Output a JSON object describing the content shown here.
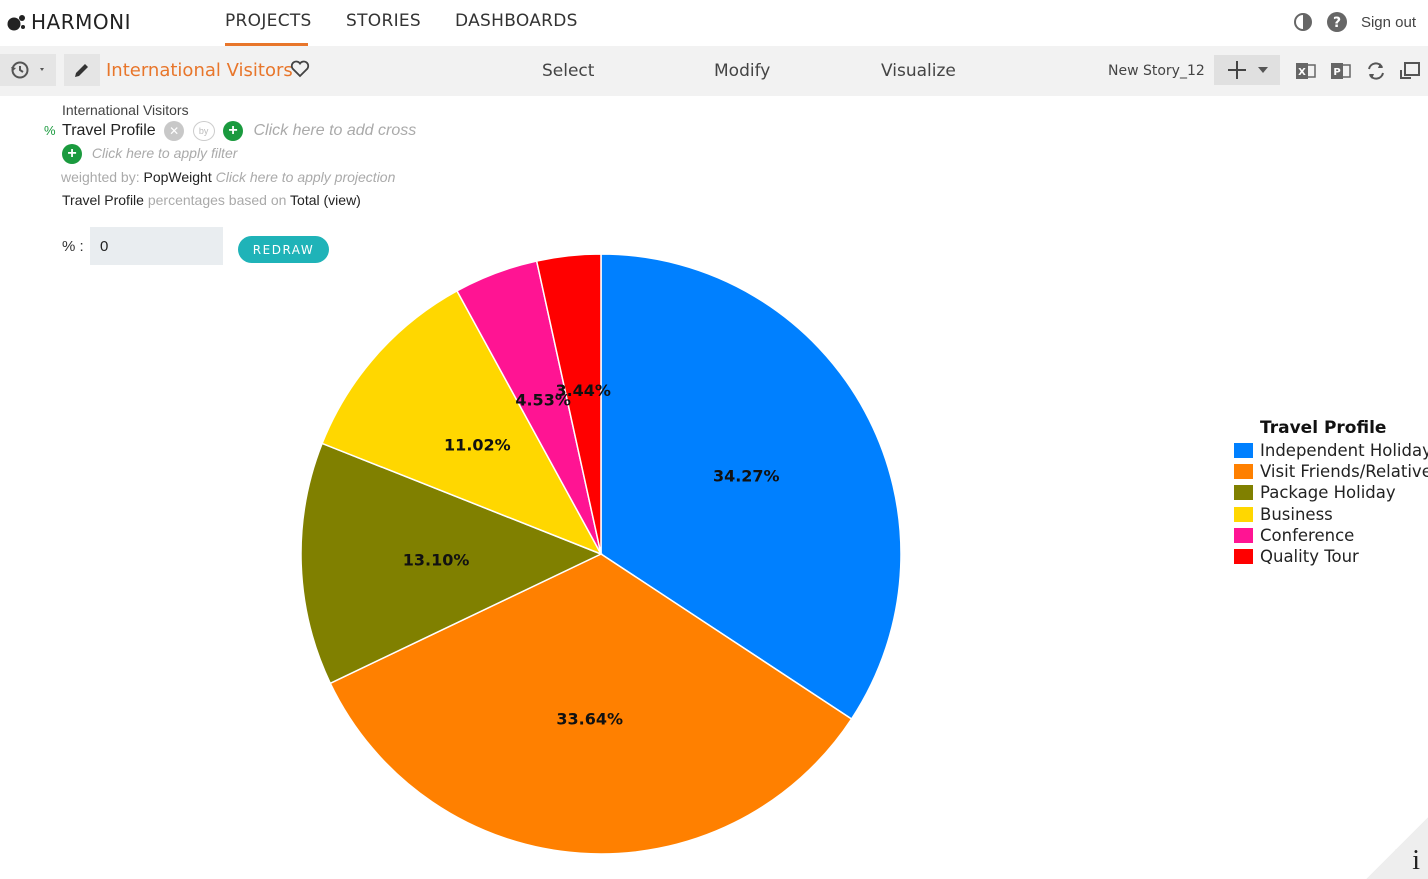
{
  "app": {
    "logo_text": "HARMONI"
  },
  "nav": {
    "items": [
      "PROJECTS",
      "STORIES",
      "DASHBOARDS"
    ],
    "active": "PROJECTS",
    "sign_out": "Sign out"
  },
  "toolbar": {
    "story_title": "International Visitors",
    "tabs": [
      "Select",
      "Modify",
      "Visualize"
    ],
    "story_name": "New Story_12"
  },
  "spec": {
    "dataset": "International Visitors",
    "percent_symbol": "%",
    "variable": "Travel Profile",
    "add_cross_hint": "Click here to add cross",
    "apply_filter_hint": "Click here to apply filter",
    "weighted_by_label": "weighted by:",
    "weight_variable": "PopWeight",
    "apply_projection_hint": "Click here to apply projection",
    "percentages_variable": "Travel Profile",
    "percentages_text": "percentages based on",
    "percentages_base": "Total (view)",
    "pct_label": "% :",
    "pct_value": "0",
    "redraw_label": "REDRAW"
  },
  "colors": {
    "accent": "#e8762b",
    "teal": "#1fb3b8",
    "green": "#1a9a3e"
  },
  "chart_data": {
    "type": "pie",
    "legend_title": "Travel Profile",
    "legend_position": "right",
    "categories": [
      "Independent Holiday",
      "Visit Friends/Relatives",
      "Package Holiday",
      "Business",
      "Conference",
      "Quality Tour"
    ],
    "values": [
      34.27,
      33.64,
      13.1,
      11.02,
      4.53,
      3.44
    ],
    "labels": [
      "34.27%",
      "33.64%",
      "13.10%",
      "11.02%",
      "4.53%",
      "3.44%"
    ],
    "colors": [
      "#0080ff",
      "#ff8000",
      "#808000",
      "#ffd700",
      "#ff1493",
      "#ff0000"
    ]
  }
}
